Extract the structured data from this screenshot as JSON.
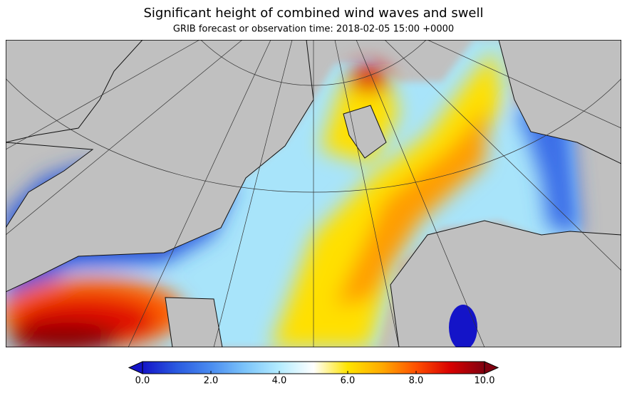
{
  "title": "Significant height of combined wind waves and swell",
  "subtitle": "GRIB forecast or observation time: 2018-02-05 15:00 +0000",
  "colorbar": {
    "range": [
      0,
      10
    ],
    "colors": [
      "#1414c8",
      "#2a5ae0",
      "#4a8cf0",
      "#7cc4fa",
      "#b4ecff",
      "#ffffff",
      "#ffe400",
      "#ffaa00",
      "#ff5000",
      "#d80000",
      "#800010"
    ],
    "ticks": [
      {
        "value": 0,
        "label": "0.0"
      },
      {
        "value": 2,
        "label": "2.0"
      },
      {
        "value": 4,
        "label": "4.0"
      },
      {
        "value": 6,
        "label": "6.0"
      },
      {
        "value": 8,
        "label": "8.0"
      },
      {
        "value": 10,
        "label": "10.0"
      }
    ]
  }
}
